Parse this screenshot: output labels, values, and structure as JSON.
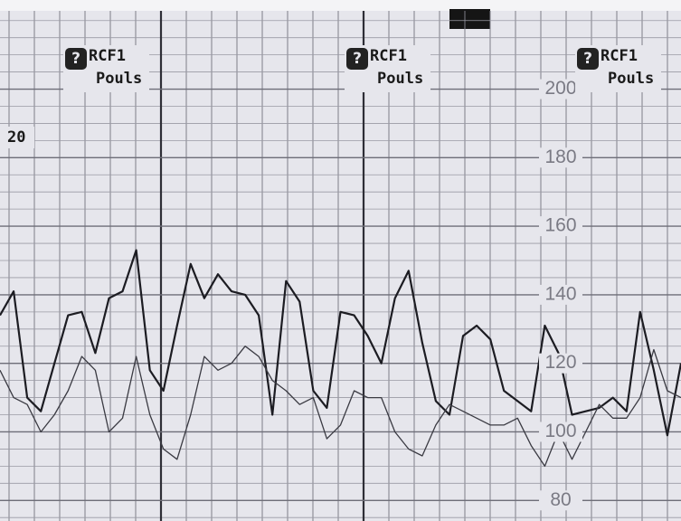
{
  "chart_data": {
    "type": "line",
    "x": [
      0,
      1,
      2,
      3,
      4,
      5,
      6,
      7,
      8,
      9,
      10,
      11,
      12,
      13,
      14,
      15,
      16,
      17,
      18,
      19,
      20,
      21,
      22,
      23,
      24,
      25,
      26,
      27,
      28,
      29,
      30,
      31,
      32,
      33,
      34,
      35,
      36,
      37,
      38,
      39,
      40,
      41,
      42,
      43,
      44,
      45,
      46,
      47,
      48,
      49,
      50
    ],
    "xlim": [
      0,
      50
    ],
    "ylim": [
      74,
      226
    ],
    "yticks": [
      80,
      100,
      120,
      140,
      160,
      180,
      200
    ],
    "grid": true,
    "series": [
      {
        "name": "RCF1",
        "color": "#1c1c22",
        "values": [
          134,
          141,
          110,
          106,
          120,
          134,
          135,
          123,
          139,
          141,
          153,
          118,
          112,
          131,
          149,
          139,
          146,
          141,
          140,
          134,
          105,
          144,
          138,
          112,
          107,
          135,
          134,
          128,
          120,
          139,
          147,
          126,
          109,
          105,
          128,
          131,
          127,
          112,
          109,
          106,
          131,
          123,
          105,
          106,
          107,
          110,
          106,
          135,
          118,
          99,
          120
        ]
      },
      {
        "name": "Pouls",
        "color": "#3a3a42",
        "values": [
          118,
          110,
          108,
          100,
          105,
          112,
          122,
          118,
          100,
          104,
          122,
          105,
          95,
          92,
          105,
          122,
          118,
          120,
          125,
          122,
          115,
          112,
          108,
          110,
          98,
          102,
          112,
          110,
          110,
          100,
          95,
          93,
          102,
          108,
          106,
          104,
          102,
          102,
          104,
          96,
          90,
          100,
          92,
          100,
          108,
          104,
          104,
          110,
          124,
          112,
          110
        ]
      }
    ],
    "annotations": [
      {
        "icon": "?",
        "line1": "RCF1",
        "line2": "Pouls"
      },
      {
        "icon": "?",
        "line1": "RCF1",
        "line2": "Pouls"
      },
      {
        "icon": "?",
        "line1": "RCF1",
        "line2": "Pouls"
      }
    ],
    "left_label": "20"
  }
}
